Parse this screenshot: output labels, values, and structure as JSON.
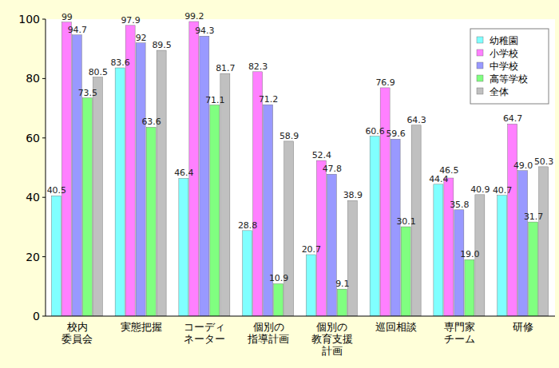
{
  "chart_data": {
    "type": "bar",
    "categories": [
      "校内\n委員会",
      "実態把握",
      "コーディ\nネーター",
      "個別の\n指導計画",
      "個別の\n教育支援\n計画",
      "巡回相談",
      "専門家\nチーム",
      "研修"
    ],
    "series": [
      {
        "name": "幼稚園",
        "color": "#80ffff",
        "values": [
          40.5,
          83.6,
          46.4,
          28.8,
          20.7,
          60.6,
          44.4,
          40.7
        ],
        "value_labels": [
          "40.5",
          "83.6",
          "46.4",
          "28.8",
          "20.7",
          "60.6",
          "44.4",
          "40.7"
        ]
      },
      {
        "name": "小学校",
        "color": "#ff80ff",
        "values": [
          99,
          97.9,
          99.2,
          82.3,
          52.4,
          76.9,
          46.5,
          64.7
        ],
        "value_labels": [
          "99",
          "97.9",
          "99.2",
          "82.3",
          "52.4",
          "76.9",
          "46.5",
          "64.7"
        ]
      },
      {
        "name": "中学校",
        "color": "#9999ff",
        "values": [
          94.7,
          92,
          94.3,
          71.2,
          47.8,
          59.6,
          35.8,
          49.0
        ],
        "value_labels": [
          "94.7",
          "92",
          "94.3",
          "71.2",
          "47.8",
          "59.6",
          "35.8",
          "49.0"
        ]
      },
      {
        "name": "高等学校",
        "color": "#80ff80",
        "values": [
          73.5,
          63.6,
          71.1,
          10.9,
          9.1,
          30.1,
          19.0,
          31.7
        ],
        "value_labels": [
          "73.5",
          "63.6",
          "71.1",
          "10.9",
          "9.1",
          "30.1",
          "19.0",
          "31.7"
        ]
      },
      {
        "name": "全体",
        "color": "#c0c0c0",
        "values": [
          80.5,
          89.5,
          81.7,
          58.9,
          38.9,
          64.3,
          40.9,
          50.3
        ],
        "value_labels": [
          "80.5",
          "89.5",
          "81.7",
          "58.9",
          "38.9",
          "64.3",
          "40.9",
          "50.3"
        ]
      }
    ],
    "ylim": [
      0,
      100
    ],
    "yticks": [
      0,
      20,
      40,
      60,
      80,
      100
    ],
    "grid": false,
    "legend": "top-right",
    "data_labels": true
  }
}
